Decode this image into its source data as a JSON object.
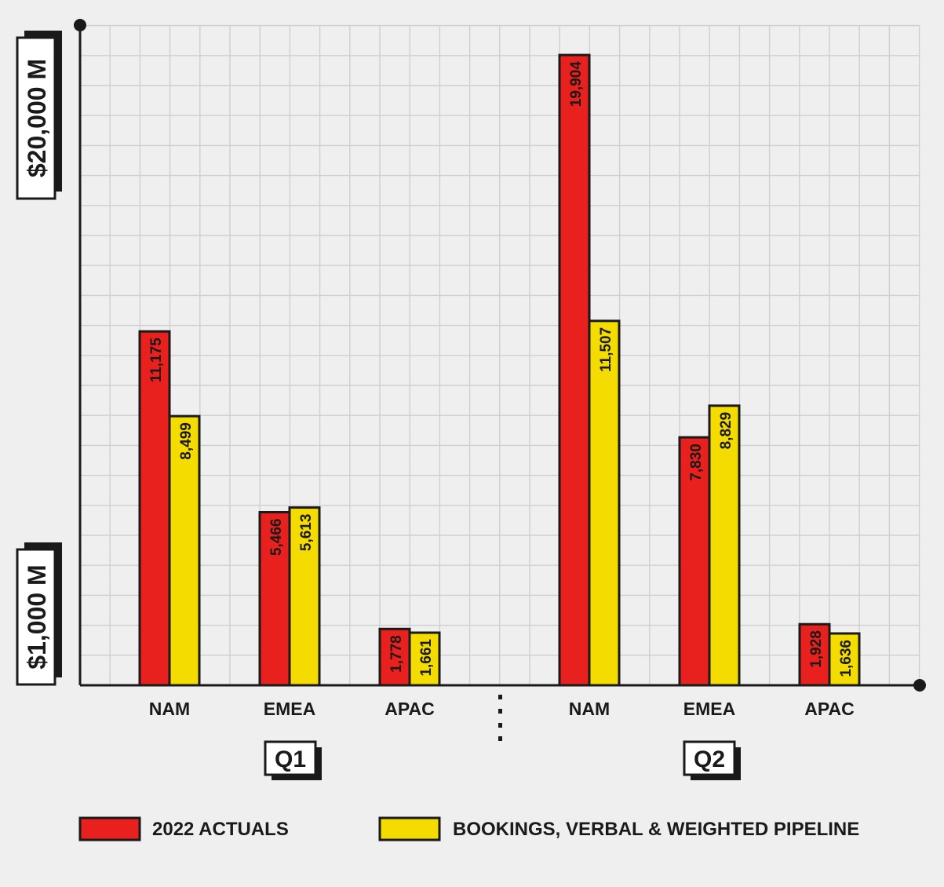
{
  "chart_data": {
    "type": "bar",
    "groups": [
      {
        "name": "Q1",
        "categories": [
          "NAM",
          "EMEA",
          "APAC"
        ]
      },
      {
        "name": "Q2",
        "categories": [
          "NAM",
          "EMEA",
          "APAC"
        ]
      }
    ],
    "series": [
      {
        "name": "2022 ACTUALS",
        "color": "#e8201e",
        "values": [
          11175,
          5466,
          1778,
          19904,
          7830,
          1928
        ],
        "labels": [
          "11,175",
          "5,466",
          "1,778",
          "19,904",
          "7,830",
          "1,928"
        ]
      },
      {
        "name": "BOOKINGS, VERBAL & WEIGHTED PIPELINE",
        "color": "#f4dc00",
        "values": [
          8499,
          5613,
          1661,
          11507,
          8829,
          1636
        ],
        "labels": [
          "8,499",
          "5,613",
          "1,661",
          "11,507",
          "8,829",
          "1,636"
        ]
      }
    ],
    "y_axis_markers": [
      {
        "label": "$1,000 M",
        "value": 1000
      },
      {
        "label": "$20,000 M",
        "value": 20000
      }
    ],
    "ylim": [
      0,
      22000
    ],
    "grid": true,
    "legend": "bottom"
  }
}
